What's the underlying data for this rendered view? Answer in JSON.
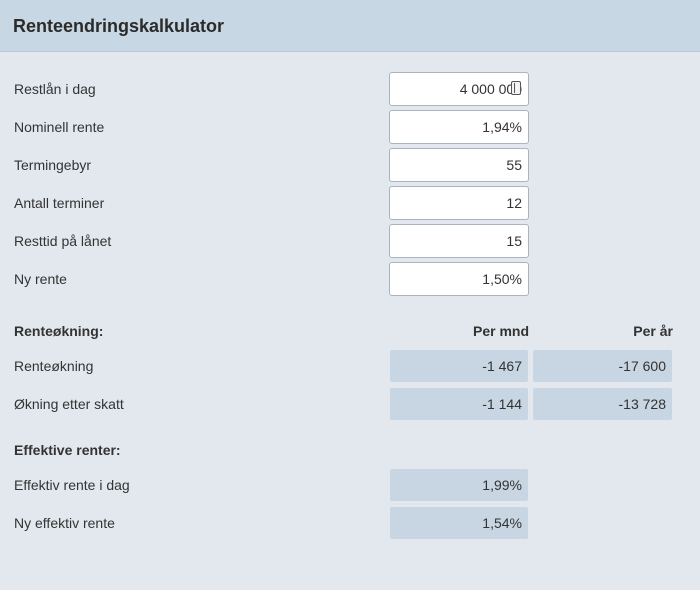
{
  "header": {
    "title": "Renteendringskalkulator"
  },
  "inputs": [
    {
      "label": "Restlån i dag",
      "value": "4 000 000"
    },
    {
      "label": "Nominell rente",
      "value": "1,94%"
    },
    {
      "label": "Termingebyr",
      "value": "55"
    },
    {
      "label": "Antall terminer",
      "value": "12"
    },
    {
      "label": "Resttid på lånet",
      "value": "15"
    },
    {
      "label": "Ny rente",
      "value": "1,50%"
    }
  ],
  "increase": {
    "heading": "Renteøkning:",
    "col_month": "Per mnd",
    "col_year": "Per år",
    "rows": [
      {
        "label": "Renteøkning",
        "month": "-1 467",
        "year": "-17 600"
      },
      {
        "label": "Økning etter skatt",
        "month": "-1 144",
        "year": "-13 728"
      }
    ]
  },
  "effective": {
    "heading": "Effektive renter:",
    "rows": [
      {
        "label": "Effektiv rente i dag",
        "value": "1,99%"
      },
      {
        "label": "Ny effektiv rente",
        "value": "1,54%"
      }
    ]
  }
}
